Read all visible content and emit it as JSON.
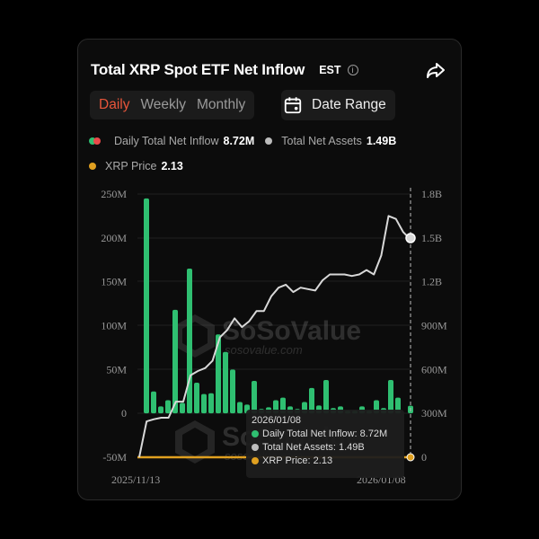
{
  "header": {
    "title": "Total XRP Spot ETF Net Inflow",
    "timezone": "EST",
    "info_icon": "info-icon",
    "share_icon": "share-icon"
  },
  "tabs": [
    {
      "label": "Daily",
      "active": true
    },
    {
      "label": "Weekly",
      "active": false
    },
    {
      "label": "Monthly",
      "active": false
    }
  ],
  "date_range": {
    "label": "Date Range",
    "icon": "calendar-icon"
  },
  "legend": {
    "inflow": {
      "label": "Daily Total Net Inflow",
      "value": "8.72M",
      "color_pos": "#2fbf71",
      "color_neg": "#e84a4a"
    },
    "assets": {
      "label": "Total Net Assets",
      "value": "1.49B",
      "color": "#bdbdbd"
    },
    "price": {
      "label": "XRP Price",
      "value": "2.13",
      "color": "#e0a020"
    }
  },
  "tooltip": {
    "date": "2026/01/08",
    "inflow_label": "Daily Total Net Inflow:",
    "inflow_value": "8.72M",
    "assets_label": "Total Net Assets:",
    "assets_value": "1.49B",
    "price_label": "XRP Price:",
    "price_value": "2.13"
  },
  "watermark": {
    "brand": "SoSoValue",
    "url": "sosovalue.com"
  },
  "chart_data": {
    "type": "bar",
    "title": "Total XRP Spot ETF Net Inflow",
    "xlabel": "",
    "x_tick_labels": [
      "2025/11/13",
      "2026/01/08"
    ],
    "left_axis": {
      "label": "Daily Total Net Inflow",
      "ticks": [
        "250M",
        "200M",
        "150M",
        "100M",
        "50M",
        "0",
        "-50M"
      ],
      "ylim": [
        -50,
        250
      ],
      "unit": "M USD"
    },
    "right_axis": {
      "label": "Total Net Assets",
      "ticks": [
        "1.8B",
        "1.5B",
        "1.2B",
        "900M",
        "600M",
        "300M",
        "0"
      ],
      "ylim": [
        0,
        1800
      ],
      "unit": "M USD"
    },
    "grid": true,
    "series": [
      {
        "name": "Daily Total Net Inflow",
        "type": "bar",
        "color": "#2fbf71",
        "values": [
          245,
          25,
          8,
          15,
          118,
          12,
          165,
          35,
          22,
          23,
          90,
          70,
          50,
          13,
          10,
          37,
          5,
          7,
          15,
          18,
          8,
          5,
          13,
          29,
          9,
          38,
          6,
          8,
          3,
          3,
          8,
          3,
          15,
          6,
          38,
          18,
          8.72
        ]
      },
      {
        "name": "Total Net Assets",
        "type": "line",
        "color": "#d8d8d8",
        "values": [
          0,
          245,
          260,
          270,
          270,
          380,
          380,
          560,
          590,
          610,
          660,
          820,
          870,
          950,
          890,
          930,
          1000,
          1000,
          1100,
          1160,
          1180,
          1130,
          1160,
          1150,
          1140,
          1210,
          1250,
          1250,
          1250,
          1240,
          1250,
          1280,
          1250,
          1380,
          1650,
          1630,
          1540,
          1490
        ]
      },
      {
        "name": "XRP Price",
        "type": "line",
        "color": "#e0a020",
        "values_note": "Flat line at right-axis baseline (scaled separately); latest 2.13"
      }
    ],
    "highlighted_point": {
      "date": "2026/01/08",
      "daily_net_inflow": "8.72M",
      "total_net_assets": "1.49B",
      "xrp_price": "2.13"
    }
  }
}
